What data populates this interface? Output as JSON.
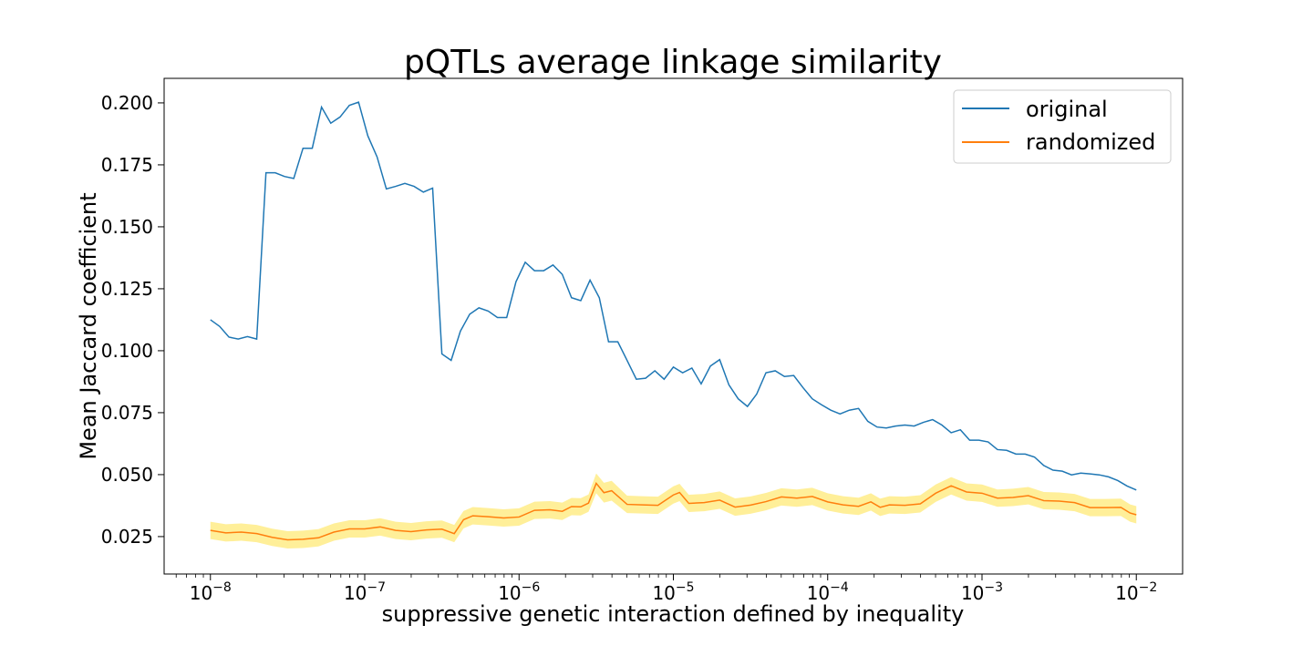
{
  "chart_data": {
    "type": "line",
    "title": "pQTLs average linkage similarity",
    "xlabel": "suppressive genetic interaction defined by inequality",
    "ylabel": "Mean Jaccard coefficient",
    "xscale": "log",
    "xlim_log10": [
      -8.3,
      -1.7
    ],
    "ylim": [
      0.0099,
      0.2099
    ],
    "x_ticks": [
      {
        "exp": -8,
        "base": "10",
        "sup": "−8"
      },
      {
        "exp": -7,
        "base": "10",
        "sup": "−7"
      },
      {
        "exp": -6,
        "base": "10",
        "sup": "−6"
      },
      {
        "exp": -5,
        "base": "10",
        "sup": "−5"
      },
      {
        "exp": -4,
        "base": "10",
        "sup": "−4"
      },
      {
        "exp": -3,
        "base": "10",
        "sup": "−3"
      },
      {
        "exp": -2,
        "base": "10",
        "sup": "−2"
      }
    ],
    "y_ticks": [
      {
        "value": 0.025,
        "label": "0.025"
      },
      {
        "value": 0.05,
        "label": "0.050"
      },
      {
        "value": 0.075,
        "label": "0.075"
      },
      {
        "value": 0.1,
        "label": "0.100"
      },
      {
        "value": 0.125,
        "label": "0.125"
      },
      {
        "value": 0.15,
        "label": "0.150"
      },
      {
        "value": 0.175,
        "label": "0.175"
      },
      {
        "value": 0.2,
        "label": "0.200"
      }
    ],
    "legend_position": "top-right",
    "series": [
      {
        "name": "original",
        "color": "#1f77b4",
        "points": [
          [
            -8.0,
            0.1125
          ],
          [
            -7.94,
            0.1098
          ],
          [
            -7.88,
            0.1055
          ],
          [
            -7.82,
            0.1047
          ],
          [
            -7.76,
            0.1057
          ],
          [
            -7.7,
            0.1047
          ],
          [
            -7.64,
            0.1718
          ],
          [
            -7.58,
            0.1718
          ],
          [
            -7.52,
            0.1703
          ],
          [
            -7.46,
            0.1695
          ],
          [
            -7.4,
            0.1817
          ],
          [
            -7.34,
            0.1817
          ],
          [
            -7.28,
            0.1983
          ],
          [
            -7.22,
            0.1918
          ],
          [
            -7.16,
            0.1943
          ],
          [
            -7.1,
            0.199
          ],
          [
            -7.04,
            0.2003
          ],
          [
            -6.98,
            0.1867
          ],
          [
            -6.92,
            0.1782
          ],
          [
            -6.86,
            0.1653
          ],
          [
            -6.8,
            0.1663
          ],
          [
            -6.74,
            0.1675
          ],
          [
            -6.68,
            0.1663
          ],
          [
            -6.62,
            0.164
          ],
          [
            -6.56,
            0.1656
          ],
          [
            -6.5,
            0.0987
          ],
          [
            -6.44,
            0.0961
          ],
          [
            -6.38,
            0.1079
          ],
          [
            -6.32,
            0.1147
          ],
          [
            -6.26,
            0.1173
          ],
          [
            -6.2,
            0.116
          ],
          [
            -6.14,
            0.1134
          ],
          [
            -6.08,
            0.1134
          ],
          [
            -6.02,
            0.1278
          ],
          [
            -5.96,
            0.1357
          ],
          [
            -5.9,
            0.1323
          ],
          [
            -5.84,
            0.1323
          ],
          [
            -5.78,
            0.1346
          ],
          [
            -5.72,
            0.1308
          ],
          [
            -5.66,
            0.1214
          ],
          [
            -5.6,
            0.1202
          ],
          [
            -5.54,
            0.1285
          ],
          [
            -5.48,
            0.1214
          ],
          [
            -5.42,
            0.1036
          ],
          [
            -5.36,
            0.1036
          ],
          [
            -5.3,
            0.0961
          ],
          [
            -5.24,
            0.0885
          ],
          [
            -5.18,
            0.0889
          ],
          [
            -5.12,
            0.0919
          ],
          [
            -5.06,
            0.0885
          ],
          [
            -5.0,
            0.0934
          ],
          [
            -4.94,
            0.0911
          ],
          [
            -4.88,
            0.093
          ],
          [
            -4.82,
            0.0866
          ],
          [
            -4.76,
            0.0938
          ],
          [
            -4.7,
            0.0964
          ],
          [
            -4.64,
            0.0862
          ],
          [
            -4.58,
            0.0806
          ],
          [
            -4.52,
            0.0775
          ],
          [
            -4.46,
            0.0825
          ],
          [
            -4.4,
            0.0911
          ],
          [
            -4.34,
            0.0919
          ],
          [
            -4.28,
            0.0896
          ],
          [
            -4.22,
            0.09
          ],
          [
            -4.16,
            0.0851
          ],
          [
            -4.1,
            0.0806
          ],
          [
            -4.04,
            0.0782
          ],
          [
            -3.98,
            0.076
          ],
          [
            -3.92,
            0.0745
          ],
          [
            -3.86,
            0.076
          ],
          [
            -3.8,
            0.0767
          ],
          [
            -3.74,
            0.0715
          ],
          [
            -3.68,
            0.0692
          ],
          [
            -3.62,
            0.0688
          ],
          [
            -3.56,
            0.0696
          ],
          [
            -3.5,
            0.07
          ],
          [
            -3.44,
            0.0696
          ],
          [
            -3.38,
            0.0711
          ],
          [
            -3.32,
            0.0722
          ],
          [
            -3.26,
            0.07
          ],
          [
            -3.2,
            0.0669
          ],
          [
            -3.14,
            0.0681
          ],
          [
            -3.08,
            0.0639
          ],
          [
            -3.02,
            0.0639
          ],
          [
            -2.96,
            0.0632
          ],
          [
            -2.9,
            0.0601
          ],
          [
            -2.84,
            0.0598
          ],
          [
            -2.78,
            0.0583
          ],
          [
            -2.72,
            0.0583
          ],
          [
            -2.66,
            0.0571
          ],
          [
            -2.6,
            0.0537
          ],
          [
            -2.54,
            0.0518
          ],
          [
            -2.48,
            0.0514
          ],
          [
            -2.42,
            0.0499
          ],
          [
            -2.36,
            0.0506
          ],
          [
            -2.3,
            0.0503
          ],
          [
            -2.24,
            0.0499
          ],
          [
            -2.18,
            0.0491
          ],
          [
            -2.12,
            0.0476
          ],
          [
            -2.06,
            0.0454
          ],
          [
            -2.0,
            0.0438
          ]
        ]
      },
      {
        "name": "randomized",
        "color": "#ff7f0e",
        "band_color": "#ffd700",
        "points": [
          [
            -8.0,
            0.0275,
            0.0035
          ],
          [
            -7.9,
            0.0265,
            0.0035
          ],
          [
            -7.8,
            0.0268,
            0.0035
          ],
          [
            -7.7,
            0.0262,
            0.0035
          ],
          [
            -7.6,
            0.0247,
            0.0035
          ],
          [
            -7.5,
            0.0237,
            0.0035
          ],
          [
            -7.4,
            0.0239,
            0.0035
          ],
          [
            -7.3,
            0.0245,
            0.0035
          ],
          [
            -7.2,
            0.0268,
            0.0035
          ],
          [
            -7.1,
            0.0281,
            0.0035
          ],
          [
            -7.0,
            0.0281,
            0.0035
          ],
          [
            -6.9,
            0.0289,
            0.0035
          ],
          [
            -6.8,
            0.0275,
            0.0035
          ],
          [
            -6.7,
            0.027,
            0.0035
          ],
          [
            -6.6,
            0.0277,
            0.0035
          ],
          [
            -6.5,
            0.028,
            0.0035
          ],
          [
            -6.42,
            0.0262,
            0.0035
          ],
          [
            -6.36,
            0.0318,
            0.0035
          ],
          [
            -6.3,
            0.0334,
            0.0035
          ],
          [
            -6.2,
            0.033,
            0.0035
          ],
          [
            -6.1,
            0.0325,
            0.0035
          ],
          [
            -6.0,
            0.0329,
            0.0035
          ],
          [
            -5.9,
            0.0356,
            0.0035
          ],
          [
            -5.8,
            0.0358,
            0.0035
          ],
          [
            -5.72,
            0.0352,
            0.0035
          ],
          [
            -5.66,
            0.0371,
            0.0035
          ],
          [
            -5.6,
            0.037,
            0.0035
          ],
          [
            -5.55,
            0.0385,
            0.0035
          ],
          [
            -5.5,
            0.0465,
            0.004
          ],
          [
            -5.45,
            0.0427,
            0.004
          ],
          [
            -5.4,
            0.0435,
            0.004
          ],
          [
            -5.3,
            0.038,
            0.0035
          ],
          [
            -5.2,
            0.0378,
            0.0035
          ],
          [
            -5.1,
            0.0376,
            0.0035
          ],
          [
            -5.0,
            0.0418,
            0.0035
          ],
          [
            -4.96,
            0.0428,
            0.0035
          ],
          [
            -4.9,
            0.0384,
            0.0035
          ],
          [
            -4.8,
            0.0387,
            0.0035
          ],
          [
            -4.7,
            0.0397,
            0.0035
          ],
          [
            -4.6,
            0.0369,
            0.0035
          ],
          [
            -4.5,
            0.0377,
            0.0035
          ],
          [
            -4.4,
            0.0391,
            0.0035
          ],
          [
            -4.3,
            0.041,
            0.0035
          ],
          [
            -4.2,
            0.0405,
            0.0035
          ],
          [
            -4.1,
            0.0412,
            0.0035
          ],
          [
            -4.0,
            0.039,
            0.0035
          ],
          [
            -3.9,
            0.0378,
            0.0035
          ],
          [
            -3.8,
            0.0372,
            0.0035
          ],
          [
            -3.72,
            0.039,
            0.0035
          ],
          [
            -3.66,
            0.0368,
            0.0035
          ],
          [
            -3.6,
            0.0378,
            0.0035
          ],
          [
            -3.5,
            0.0376,
            0.0035
          ],
          [
            -3.4,
            0.0382,
            0.0035
          ],
          [
            -3.3,
            0.0425,
            0.0035
          ],
          [
            -3.2,
            0.0455,
            0.0035
          ],
          [
            -3.1,
            0.043,
            0.0035
          ],
          [
            -3.0,
            0.0425,
            0.0035
          ],
          [
            -2.9,
            0.0405,
            0.0035
          ],
          [
            -2.8,
            0.0408,
            0.0035
          ],
          [
            -2.7,
            0.0415,
            0.0035
          ],
          [
            -2.6,
            0.0395,
            0.0035
          ],
          [
            -2.5,
            0.0393,
            0.0035
          ],
          [
            -2.4,
            0.0387,
            0.0035
          ],
          [
            -2.3,
            0.0367,
            0.0035
          ],
          [
            -2.2,
            0.0367,
            0.0035
          ],
          [
            -2.1,
            0.0368,
            0.0035
          ],
          [
            -2.04,
            0.0345,
            0.0035
          ],
          [
            -2.0,
            0.0338,
            0.0035
          ]
        ]
      }
    ]
  }
}
